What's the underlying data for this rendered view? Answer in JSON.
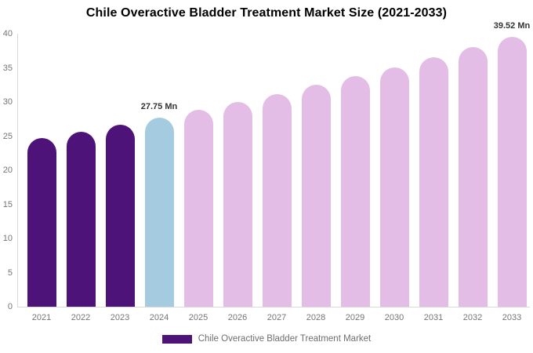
{
  "title": "Chile Overactive Bladder Treatment Market Size (2021-2033)",
  "chart_data": {
    "type": "bar",
    "title": "Chile Overactive Bladder Treatment Market Size (2021-2033)",
    "categories": [
      "2021",
      "2022",
      "2023",
      "2024",
      "2025",
      "2026",
      "2027",
      "2028",
      "2029",
      "2030",
      "2031",
      "2032",
      "2033"
    ],
    "values": [
      24.7,
      25.6,
      26.7,
      27.75,
      28.9,
      30.0,
      31.2,
      32.5,
      33.8,
      35.1,
      36.6,
      38.0,
      39.52
    ],
    "unit": "Mn",
    "bar_colors": [
      "#4E1378",
      "#4E1378",
      "#4E1378",
      "#A4CBDF",
      "#E3BDE6",
      "#E3BDE6",
      "#E3BDE6",
      "#E3BDE6",
      "#E3BDE6",
      "#E3BDE6",
      "#E3BDE6",
      "#E3BDE6",
      "#E3BDE6"
    ],
    "yticks": [
      0,
      5,
      10,
      15,
      20,
      25,
      30,
      35,
      40
    ],
    "ylim": [
      0,
      40
    ],
    "xlabel": "",
    "ylabel": "",
    "grid": false,
    "legend_position": "bottom-center",
    "annotations": [
      {
        "category": "2024",
        "text": "27.75 Mn"
      },
      {
        "category": "2033",
        "text": "39.52 Mn"
      }
    ],
    "legend": [
      {
        "label": "Chile Overactive Bladder Treatment Market",
        "color": "#4E1378"
      }
    ]
  },
  "colors": {
    "historical_bar": "#4E1378",
    "current_year_bar": "#A4CBDF",
    "forecast_bar": "#E3BDE6",
    "axis": "#d9d9d9",
    "tick_text": "#757575",
    "annotation_text": "#333333"
  }
}
